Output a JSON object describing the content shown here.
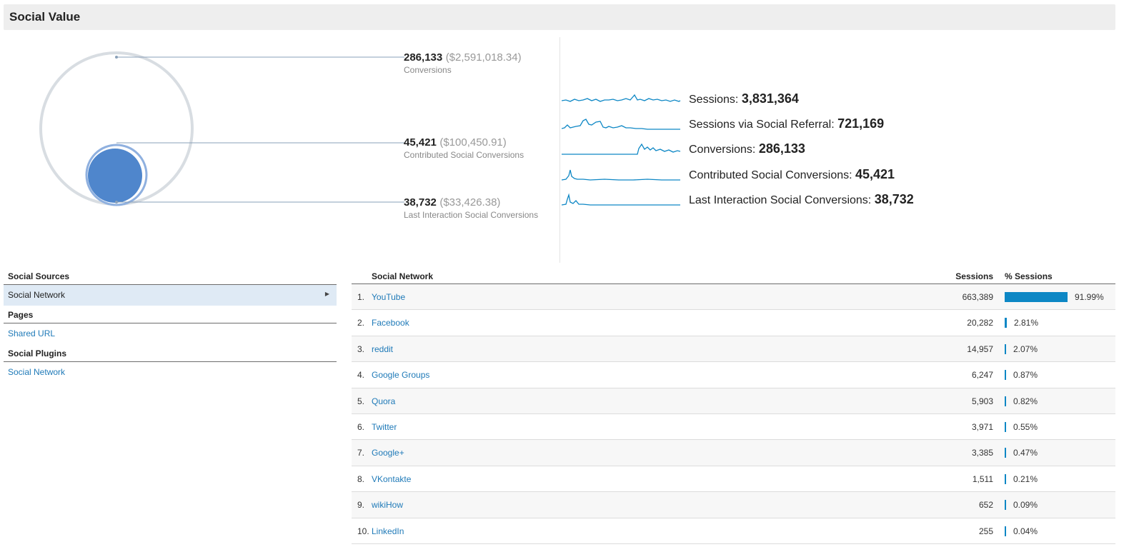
{
  "header": {
    "title": "Social Value"
  },
  "conversions": [
    {
      "num": "286,133",
      "money": "($2,591,018.34)",
      "label": "Conversions"
    },
    {
      "num": "45,421",
      "money": "($100,450.91)",
      "label": "Contributed Social Conversions"
    },
    {
      "num": "38,732",
      "money": "($33,426.38)",
      "label": "Last Interaction Social Conversions"
    }
  ],
  "metrics": [
    {
      "label": "Sessions:",
      "value": "3,831,364"
    },
    {
      "label": "Sessions via Social Referral:",
      "value": "721,169"
    },
    {
      "label": "Conversions:",
      "value": "286,133"
    },
    {
      "label": "Contributed Social Conversions:",
      "value": "45,421"
    },
    {
      "label": "Last Interaction Social Conversions:",
      "value": "38,732"
    }
  ],
  "nav": {
    "sources_head": "Social Sources",
    "sources_item": "Social Network",
    "pages_head": "Pages",
    "pages_item": "Shared URL",
    "plugins_head": "Social Plugins",
    "plugins_item": "Social Network"
  },
  "table": {
    "col_network": "Social Network",
    "col_sessions": "Sessions",
    "col_pct": "% Sessions",
    "rows": [
      {
        "idx": "1.",
        "name": "YouTube",
        "sessions": "663,389",
        "pct": "91.99%",
        "share": 91.99
      },
      {
        "idx": "2.",
        "name": "Facebook",
        "sessions": "20,282",
        "pct": "2.81%",
        "share": 2.81
      },
      {
        "idx": "3.",
        "name": "reddit",
        "sessions": "14,957",
        "pct": "2.07%",
        "share": 2.07
      },
      {
        "idx": "4.",
        "name": "Google Groups",
        "sessions": "6,247",
        "pct": "0.87%",
        "share": 0.87
      },
      {
        "idx": "5.",
        "name": "Quora",
        "sessions": "5,903",
        "pct": "0.82%",
        "share": 0.82
      },
      {
        "idx": "6.",
        "name": "Twitter",
        "sessions": "3,971",
        "pct": "0.55%",
        "share": 0.55
      },
      {
        "idx": "7.",
        "name": "Google+",
        "sessions": "3,385",
        "pct": "0.47%",
        "share": 0.47
      },
      {
        "idx": "8.",
        "name": "VKontakte",
        "sessions": "1,511",
        "pct": "0.21%",
        "share": 0.21
      },
      {
        "idx": "9.",
        "name": "wikiHow",
        "sessions": "652",
        "pct": "0.09%",
        "share": 0.09
      },
      {
        "idx": "10.",
        "name": "LinkedIn",
        "sessions": "255",
        "pct": "0.04%",
        "share": 0.04
      }
    ]
  },
  "colors": {
    "accent": "#0d87c5",
    "link": "#1f7ab8",
    "circle_fill": "#4f86cc",
    "circle_ring": "#d8dde2"
  }
}
